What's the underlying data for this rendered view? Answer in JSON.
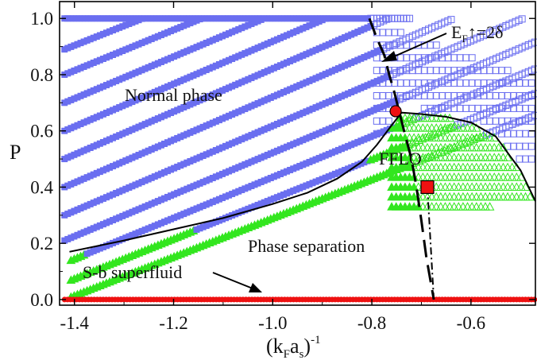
{
  "chart_data": {
    "type": "scatter",
    "xlabel": "(k Fa s)⁻¹",
    "xlabel_parts": {
      "base": "(k",
      "sub1": "F",
      "mid": "a",
      "sub2": "s",
      "close": ")",
      "sup": "-1"
    },
    "ylabel": "P",
    "xlim": [
      -1.43,
      -0.47
    ],
    "ylim": [
      -0.02,
      1.06
    ],
    "x_ticks": [
      -1.4,
      -1.2,
      -1.0,
      -0.8,
      -0.6
    ],
    "x_tick_labels": [
      "-1.4",
      "-1.2",
      "-1.0",
      "-0.8",
      "-0.6"
    ],
    "y_ticks": [
      0.0,
      0.2,
      0.4,
      0.6,
      0.8,
      1.0
    ],
    "y_tick_labels": [
      "0.0",
      "0.2",
      "0.4",
      "0.6",
      "0.8",
      "1.0"
    ],
    "colors": {
      "normal": "#6a6ef0",
      "fflo": "#33e61f",
      "superfluid": "#ee1111",
      "boundary": "#000000"
    },
    "normal_lines_p0": [
      0.0,
      0.06,
      0.13,
      0.21,
      0.3,
      0.4,
      0.5,
      0.6,
      0.7,
      0.8,
      0.89
    ],
    "normal_line_start_x": -1.42,
    "superfluid_line": {
      "x_start": -1.42,
      "x_end": -0.47,
      "y": 0.0
    },
    "solid_boundary": {
      "x": [
        -1.41,
        -1.3,
        -1.2,
        -1.1,
        -1.0,
        -0.93,
        -0.87,
        -0.82,
        -0.79,
        -0.76,
        -0.74,
        -0.7,
        -0.65,
        -0.6,
        -0.55,
        -0.5,
        -0.47
      ],
      "y": [
        0.17,
        0.21,
        0.25,
        0.29,
        0.34,
        0.38,
        0.43,
        0.49,
        0.55,
        0.62,
        0.665,
        0.66,
        0.65,
        0.63,
        0.58,
        0.46,
        0.35
      ]
    },
    "dashed_boundary": {
      "x": [
        -0.805,
        -0.79,
        -0.775,
        -0.765,
        -0.755,
        -0.745,
        -0.735,
        -0.72,
        -0.71,
        -0.7,
        -0.69,
        -0.675
      ],
      "y": [
        1.0,
        0.93,
        0.87,
        0.8,
        0.74,
        0.67,
        0.6,
        0.5,
        0.4,
        0.28,
        0.15,
        0.0
      ]
    },
    "dash_dot_line": {
      "x": [
        -0.688,
        -0.675
      ],
      "y": [
        0.4,
        0.0
      ]
    },
    "tricritical_point": {
      "x": -0.752,
      "y": 0.67
    },
    "red_square": {
      "x": -0.688,
      "y": 0.4
    },
    "annotations": {
      "normal_phase": "Normal phase",
      "fflo": "FFLO",
      "phase_separation": "Phase separation",
      "sb_superfluid": "S-b superfluid",
      "ef_label": {
        "E": "E",
        "sub": "F",
        "rest": "↑=2δ"
      }
    }
  }
}
